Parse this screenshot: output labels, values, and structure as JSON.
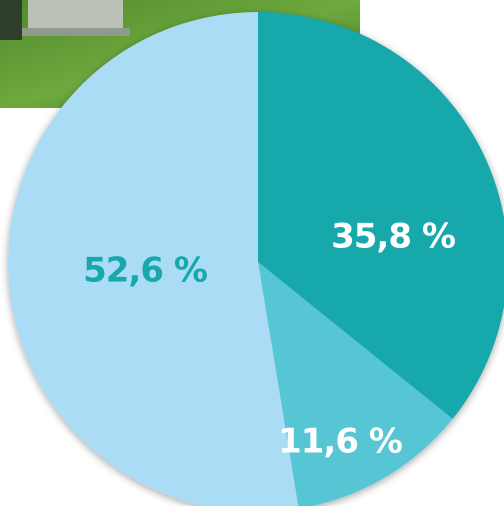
{
  "chart_data": {
    "type": "pie",
    "categories": [
      null,
      null,
      null
    ],
    "values": [
      35.8,
      11.6,
      52.6
    ],
    "value_labels": [
      "35,8 %",
      "11,6 %",
      "52,6 %"
    ],
    "colors": [
      "#17a8ab",
      "#56c5d4",
      "#aadcf6"
    ],
    "label_colors": [
      "#ffffff",
      "#ffffff",
      "#17a8ab"
    ]
  }
}
